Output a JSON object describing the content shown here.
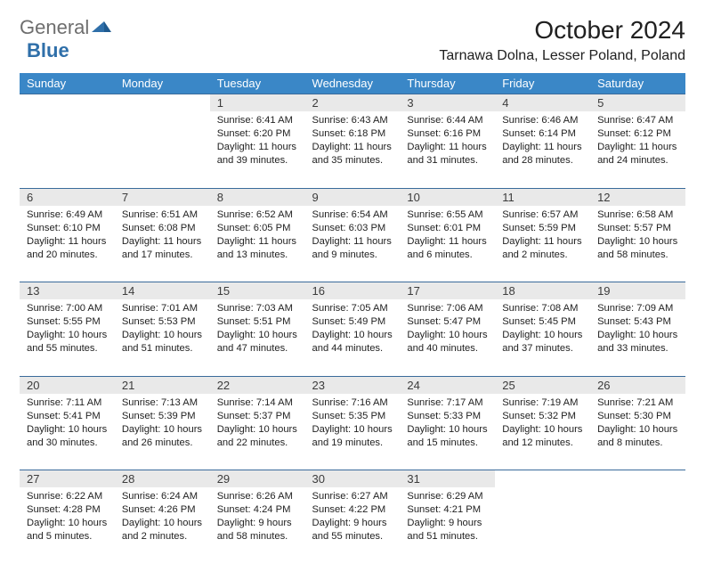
{
  "logo": {
    "general": "General",
    "blue": "Blue"
  },
  "title": "October 2024",
  "location": "Tarnawa Dolna, Lesser Poland, Poland",
  "colors": {
    "header_bg": "#3a87c7",
    "header_text": "#ffffff",
    "daynum_bg": "#e9e9e9",
    "border": "#3a6b9b",
    "logo_gray": "#6e6e6e",
    "logo_blue": "#2f6fa9"
  },
  "day_headers": [
    "Sunday",
    "Monday",
    "Tuesday",
    "Wednesday",
    "Thursday",
    "Friday",
    "Saturday"
  ],
  "weeks": [
    {
      "nums": [
        "",
        "",
        "1",
        "2",
        "3",
        "4",
        "5"
      ],
      "cells": [
        "",
        "",
        "Sunrise: 6:41 AM\nSunset: 6:20 PM\nDaylight: 11 hours and 39 minutes.",
        "Sunrise: 6:43 AM\nSunset: 6:18 PM\nDaylight: 11 hours and 35 minutes.",
        "Sunrise: 6:44 AM\nSunset: 6:16 PM\nDaylight: 11 hours and 31 minutes.",
        "Sunrise: 6:46 AM\nSunset: 6:14 PM\nDaylight: 11 hours and 28 minutes.",
        "Sunrise: 6:47 AM\nSunset: 6:12 PM\nDaylight: 11 hours and 24 minutes."
      ]
    },
    {
      "nums": [
        "6",
        "7",
        "8",
        "9",
        "10",
        "11",
        "12"
      ],
      "cells": [
        "Sunrise: 6:49 AM\nSunset: 6:10 PM\nDaylight: 11 hours and 20 minutes.",
        "Sunrise: 6:51 AM\nSunset: 6:08 PM\nDaylight: 11 hours and 17 minutes.",
        "Sunrise: 6:52 AM\nSunset: 6:05 PM\nDaylight: 11 hours and 13 minutes.",
        "Sunrise: 6:54 AM\nSunset: 6:03 PM\nDaylight: 11 hours and 9 minutes.",
        "Sunrise: 6:55 AM\nSunset: 6:01 PM\nDaylight: 11 hours and 6 minutes.",
        "Sunrise: 6:57 AM\nSunset: 5:59 PM\nDaylight: 11 hours and 2 minutes.",
        "Sunrise: 6:58 AM\nSunset: 5:57 PM\nDaylight: 10 hours and 58 minutes."
      ]
    },
    {
      "nums": [
        "13",
        "14",
        "15",
        "16",
        "17",
        "18",
        "19"
      ],
      "cells": [
        "Sunrise: 7:00 AM\nSunset: 5:55 PM\nDaylight: 10 hours and 55 minutes.",
        "Sunrise: 7:01 AM\nSunset: 5:53 PM\nDaylight: 10 hours and 51 minutes.",
        "Sunrise: 7:03 AM\nSunset: 5:51 PM\nDaylight: 10 hours and 47 minutes.",
        "Sunrise: 7:05 AM\nSunset: 5:49 PM\nDaylight: 10 hours and 44 minutes.",
        "Sunrise: 7:06 AM\nSunset: 5:47 PM\nDaylight: 10 hours and 40 minutes.",
        "Sunrise: 7:08 AM\nSunset: 5:45 PM\nDaylight: 10 hours and 37 minutes.",
        "Sunrise: 7:09 AM\nSunset: 5:43 PM\nDaylight: 10 hours and 33 minutes."
      ]
    },
    {
      "nums": [
        "20",
        "21",
        "22",
        "23",
        "24",
        "25",
        "26"
      ],
      "cells": [
        "Sunrise: 7:11 AM\nSunset: 5:41 PM\nDaylight: 10 hours and 30 minutes.",
        "Sunrise: 7:13 AM\nSunset: 5:39 PM\nDaylight: 10 hours and 26 minutes.",
        "Sunrise: 7:14 AM\nSunset: 5:37 PM\nDaylight: 10 hours and 22 minutes.",
        "Sunrise: 7:16 AM\nSunset: 5:35 PM\nDaylight: 10 hours and 19 minutes.",
        "Sunrise: 7:17 AM\nSunset: 5:33 PM\nDaylight: 10 hours and 15 minutes.",
        "Sunrise: 7:19 AM\nSunset: 5:32 PM\nDaylight: 10 hours and 12 minutes.",
        "Sunrise: 7:21 AM\nSunset: 5:30 PM\nDaylight: 10 hours and 8 minutes."
      ]
    },
    {
      "nums": [
        "27",
        "28",
        "29",
        "30",
        "31",
        "",
        ""
      ],
      "cells": [
        "Sunrise: 6:22 AM\nSunset: 4:28 PM\nDaylight: 10 hours and 5 minutes.",
        "Sunrise: 6:24 AM\nSunset: 4:26 PM\nDaylight: 10 hours and 2 minutes.",
        "Sunrise: 6:26 AM\nSunset: 4:24 PM\nDaylight: 9 hours and 58 minutes.",
        "Sunrise: 6:27 AM\nSunset: 4:22 PM\nDaylight: 9 hours and 55 minutes.",
        "Sunrise: 6:29 AM\nSunset: 4:21 PM\nDaylight: 9 hours and 51 minutes.",
        "",
        ""
      ]
    }
  ]
}
